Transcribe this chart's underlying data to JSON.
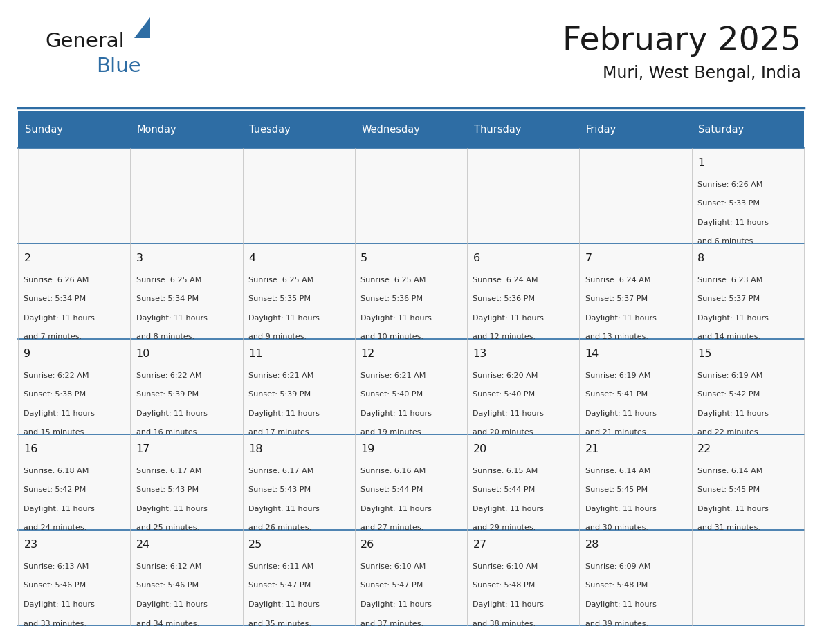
{
  "title": "February 2025",
  "subtitle": "Muri, West Bengal, India",
  "days_of_week": [
    "Sunday",
    "Monday",
    "Tuesday",
    "Wednesday",
    "Thursday",
    "Friday",
    "Saturday"
  ],
  "header_bg": "#2E6DA4",
  "header_text": "#FFFFFF",
  "text_color": "#333333",
  "day_num_color": "#1a1a1a",
  "line_color": "#2E6DA4",
  "calendar_data": [
    [
      null,
      null,
      null,
      null,
      null,
      null,
      {
        "day": 1,
        "sunrise": "6:26 AM",
        "sunset": "5:33 PM",
        "daylight": "11 hours and 6 minutes."
      }
    ],
    [
      {
        "day": 2,
        "sunrise": "6:26 AM",
        "sunset": "5:34 PM",
        "daylight": "11 hours and 7 minutes."
      },
      {
        "day": 3,
        "sunrise": "6:25 AM",
        "sunset": "5:34 PM",
        "daylight": "11 hours and 8 minutes."
      },
      {
        "day": 4,
        "sunrise": "6:25 AM",
        "sunset": "5:35 PM",
        "daylight": "11 hours and 9 minutes."
      },
      {
        "day": 5,
        "sunrise": "6:25 AM",
        "sunset": "5:36 PM",
        "daylight": "11 hours and 10 minutes."
      },
      {
        "day": 6,
        "sunrise": "6:24 AM",
        "sunset": "5:36 PM",
        "daylight": "11 hours and 12 minutes."
      },
      {
        "day": 7,
        "sunrise": "6:24 AM",
        "sunset": "5:37 PM",
        "daylight": "11 hours and 13 minutes."
      },
      {
        "day": 8,
        "sunrise": "6:23 AM",
        "sunset": "5:37 PM",
        "daylight": "11 hours and 14 minutes."
      }
    ],
    [
      {
        "day": 9,
        "sunrise": "6:22 AM",
        "sunset": "5:38 PM",
        "daylight": "11 hours and 15 minutes."
      },
      {
        "day": 10,
        "sunrise": "6:22 AM",
        "sunset": "5:39 PM",
        "daylight": "11 hours and 16 minutes."
      },
      {
        "day": 11,
        "sunrise": "6:21 AM",
        "sunset": "5:39 PM",
        "daylight": "11 hours and 17 minutes."
      },
      {
        "day": 12,
        "sunrise": "6:21 AM",
        "sunset": "5:40 PM",
        "daylight": "11 hours and 19 minutes."
      },
      {
        "day": 13,
        "sunrise": "6:20 AM",
        "sunset": "5:40 PM",
        "daylight": "11 hours and 20 minutes."
      },
      {
        "day": 14,
        "sunrise": "6:19 AM",
        "sunset": "5:41 PM",
        "daylight": "11 hours and 21 minutes."
      },
      {
        "day": 15,
        "sunrise": "6:19 AM",
        "sunset": "5:42 PM",
        "daylight": "11 hours and 22 minutes."
      }
    ],
    [
      {
        "day": 16,
        "sunrise": "6:18 AM",
        "sunset": "5:42 PM",
        "daylight": "11 hours and 24 minutes."
      },
      {
        "day": 17,
        "sunrise": "6:17 AM",
        "sunset": "5:43 PM",
        "daylight": "11 hours and 25 minutes."
      },
      {
        "day": 18,
        "sunrise": "6:17 AM",
        "sunset": "5:43 PM",
        "daylight": "11 hours and 26 minutes."
      },
      {
        "day": 19,
        "sunrise": "6:16 AM",
        "sunset": "5:44 PM",
        "daylight": "11 hours and 27 minutes."
      },
      {
        "day": 20,
        "sunrise": "6:15 AM",
        "sunset": "5:44 PM",
        "daylight": "11 hours and 29 minutes."
      },
      {
        "day": 21,
        "sunrise": "6:14 AM",
        "sunset": "5:45 PM",
        "daylight": "11 hours and 30 minutes."
      },
      {
        "day": 22,
        "sunrise": "6:14 AM",
        "sunset": "5:45 PM",
        "daylight": "11 hours and 31 minutes."
      }
    ],
    [
      {
        "day": 23,
        "sunrise": "6:13 AM",
        "sunset": "5:46 PM",
        "daylight": "11 hours and 33 minutes."
      },
      {
        "day": 24,
        "sunrise": "6:12 AM",
        "sunset": "5:46 PM",
        "daylight": "11 hours and 34 minutes."
      },
      {
        "day": 25,
        "sunrise": "6:11 AM",
        "sunset": "5:47 PM",
        "daylight": "11 hours and 35 minutes."
      },
      {
        "day": 26,
        "sunrise": "6:10 AM",
        "sunset": "5:47 PM",
        "daylight": "11 hours and 37 minutes."
      },
      {
        "day": 27,
        "sunrise": "6:10 AM",
        "sunset": "5:48 PM",
        "daylight": "11 hours and 38 minutes."
      },
      {
        "day": 28,
        "sunrise": "6:09 AM",
        "sunset": "5:48 PM",
        "daylight": "11 hours and 39 minutes."
      },
      null
    ]
  ],
  "figsize": [
    11.88,
    9.18
  ],
  "dpi": 100
}
